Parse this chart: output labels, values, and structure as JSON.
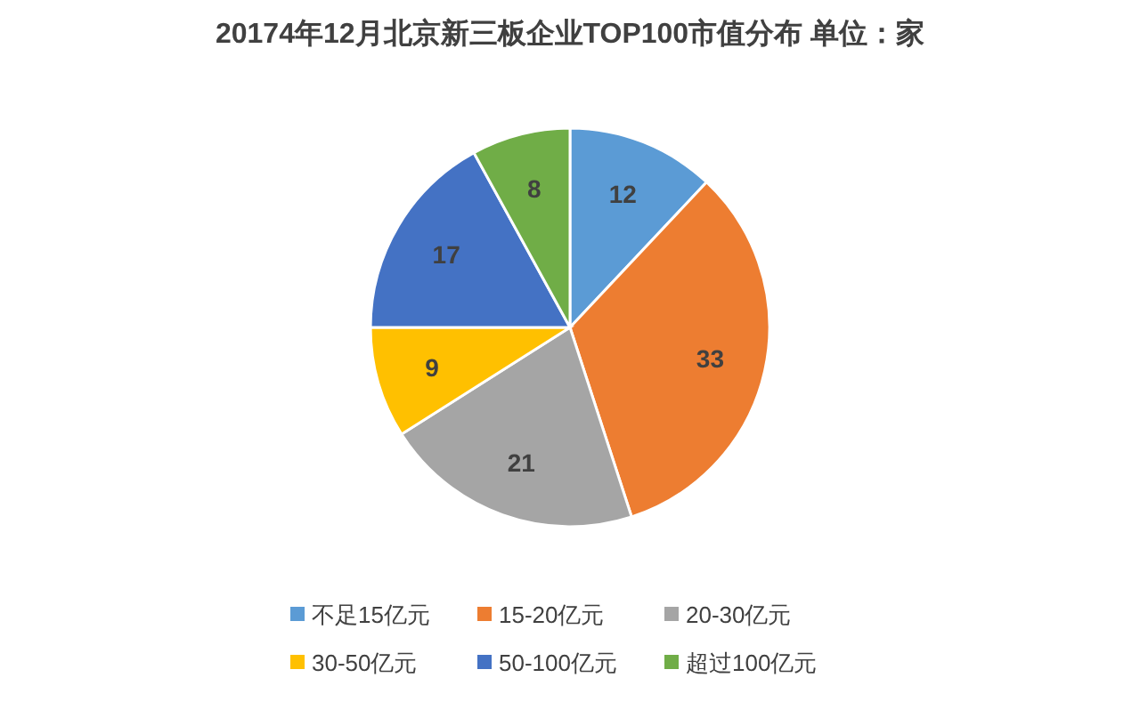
{
  "chart_data": {
    "type": "pie",
    "title": "20174年12月北京新三板企业TOP100市值分布 单位：家",
    "categories": [
      "不足15亿元",
      "15-20亿元",
      "20-30亿元",
      "30-50亿元",
      "50-100亿元",
      "超过100亿元"
    ],
    "values": [
      12,
      33,
      21,
      9,
      17,
      8
    ],
    "colors": [
      "#5b9bd5",
      "#ed7d31",
      "#a5a5a5",
      "#ffc000",
      "#4472c4",
      "#70ad47"
    ],
    "data_labels": true,
    "legend": "bottom"
  }
}
